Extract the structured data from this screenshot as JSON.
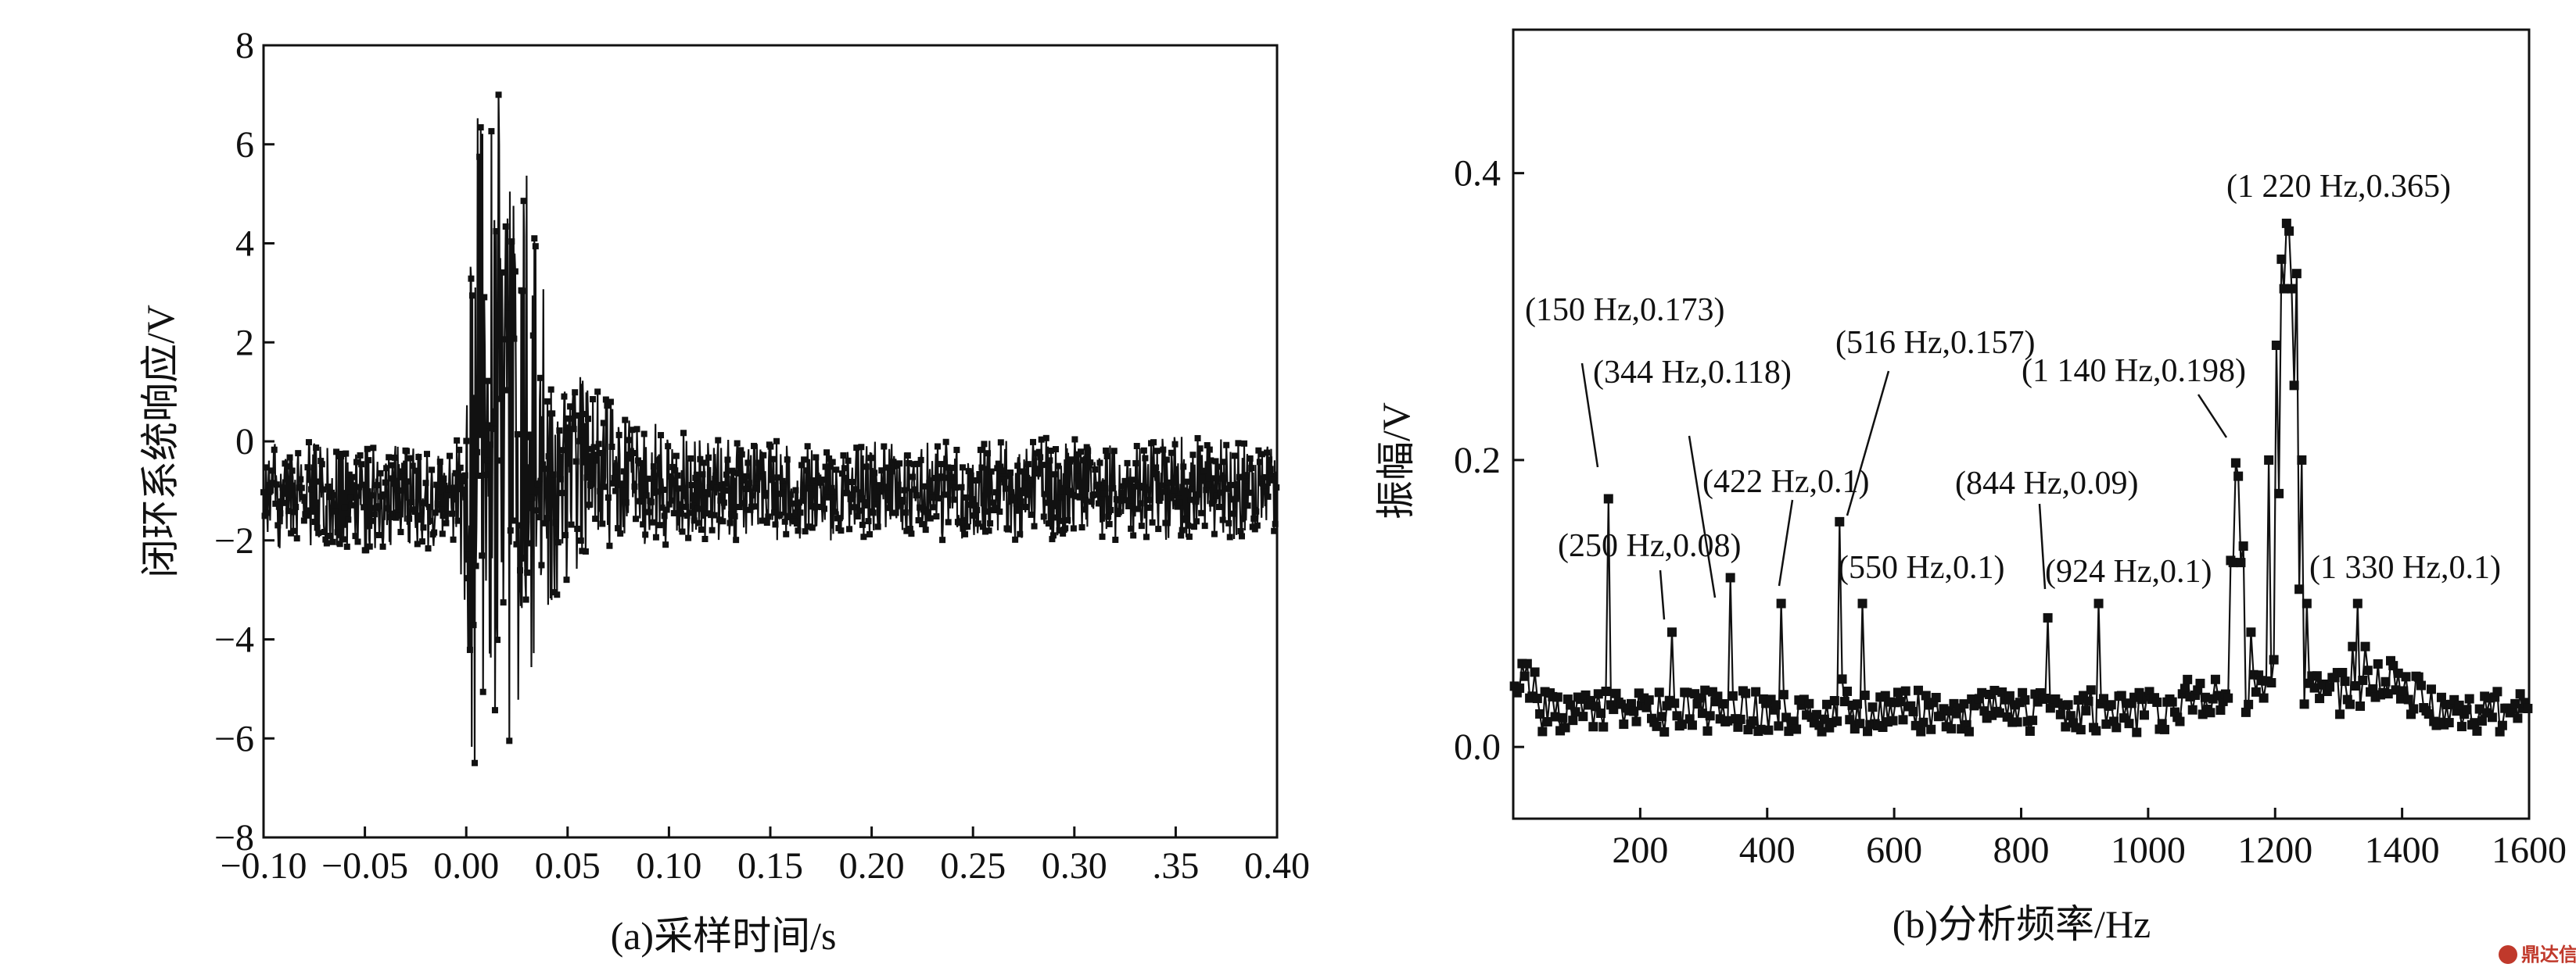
{
  "chart_data": [
    {
      "id": "a",
      "type": "line",
      "caption": "(a)采样时间/s",
      "xlabel": "",
      "ylabel": "闭环系统响应/V",
      "xlim": [
        -0.1,
        0.4
      ],
      "ylim": [
        -8,
        8
      ],
      "xticks": [
        -0.1,
        -0.05,
        0.0,
        0.05,
        0.1,
        0.15,
        0.2,
        0.25,
        0.3,
        0.35,
        0.4
      ],
      "xtick_labels": [
        "−0.10",
        "−0.05",
        "0.00",
        "0.05",
        "0.10",
        "0.15",
        "0.20",
        "0.25",
        "0.30",
        ".35",
        "0.40"
      ],
      "yticks": [
        -8,
        -6,
        -4,
        -2,
        0,
        2,
        4,
        6,
        8
      ],
      "ytick_labels": [
        "−8",
        "−6",
        "−4",
        "−2",
        "0",
        "2",
        "4",
        "6",
        "8"
      ],
      "series": [
        {
          "envelope": {
            "time": [
              -0.1,
              -0.005,
              0.0,
              0.003,
              0.008,
              0.012,
              0.016,
              0.02,
              0.025,
              0.03,
              0.035,
              0.04,
              0.05,
              0.06,
              0.07,
              0.08,
              0.1,
              0.13,
              0.16,
              0.2,
              0.25,
              0.3,
              0.35,
              0.4
            ],
            "upper": [
              0.0,
              0.0,
              1.2,
              6.2,
              6.9,
              7.1,
              7.2,
              6.8,
              6.0,
              5.6,
              4.5,
              2.3,
              1.6,
              1.2,
              0.9,
              0.6,
              0.3,
              0.1,
              0.0,
              0.0,
              0.0,
              0.1,
              0.1,
              0.0
            ],
            "lower": [
              -2.2,
              -2.2,
              -3.5,
              -6.6,
              -7.3,
              -7.0,
              -6.8,
              -6.5,
              -5.7,
              -5.3,
              -3.8,
              -3.5,
              -2.8,
              -2.4,
              -2.3,
              -2.2,
              -2.1,
              -2.0,
              -2.0,
              -2.0,
              -2.0,
              -2.0,
              -2.0,
              -2.0
            ]
          }
        }
      ]
    },
    {
      "id": "b",
      "type": "line",
      "caption": "(b)分析频率/Hz",
      "xlabel": "",
      "ylabel": "振幅/V",
      "xlim": [
        0,
        1600
      ],
      "ylim": [
        -0.05,
        0.5
      ],
      "xticks": [
        200,
        400,
        600,
        800,
        1000,
        1200,
        1400,
        1600
      ],
      "xtick_labels": [
        "200",
        "400",
        "600",
        "800",
        "1000",
        "1200",
        "1400",
        "1600"
      ],
      "yticks": [
        0.0,
        0.2,
        0.4
      ],
      "ytick_labels": [
        "0.0",
        "0.2",
        "0.4"
      ],
      "series": [
        {
          "peaks": [
            {
              "x": 150,
              "y": 0.173
            },
            {
              "x": 250,
              "y": 0.08
            },
            {
              "x": 344,
              "y": 0.118
            },
            {
              "x": 422,
              "y": 0.1
            },
            {
              "x": 516,
              "y": 0.157
            },
            {
              "x": 550,
              "y": 0.1
            },
            {
              "x": 844,
              "y": 0.09
            },
            {
              "x": 924,
              "y": 0.1
            },
            {
              "x": 1140,
              "y": 0.198
            },
            {
              "x": 1220,
              "y": 0.365
            },
            {
              "x": 1330,
              "y": 0.1
            }
          ],
          "baseline": 0.025
        }
      ],
      "annotations": [
        {
          "text": "(150 Hz,0.173)",
          "x": 150,
          "y": 0.173
        },
        {
          "text": "(344 Hz,0.118)",
          "x": 344,
          "y": 0.118
        },
        {
          "text": "(516 Hz,0.157)",
          "x": 516,
          "y": 0.157
        },
        {
          "text": "(1 140 Hz,0.198)",
          "x": 1140,
          "y": 0.198
        },
        {
          "text": "(1 220 Hz,0.365)",
          "x": 1220,
          "y": 0.365
        },
        {
          "text": "(422 Hz,0.1)",
          "x": 422,
          "y": 0.1
        },
        {
          "text": "(844 Hz,0.09)",
          "x": 844,
          "y": 0.09
        },
        {
          "text": "(250 Hz,0.08)",
          "x": 250,
          "y": 0.08
        },
        {
          "text": "(550 Hz,0.1)",
          "x": 550,
          "y": 0.1
        },
        {
          "text": "(924 Hz,0.1)",
          "x": 924,
          "y": 0.1
        },
        {
          "text": "(1 330 Hz,0.1)",
          "x": 1330,
          "y": 0.1
        }
      ]
    }
  ],
  "watermark": {
    "logo_icon": "dingdaxin-logo-icon",
    "text": "鼎达信"
  }
}
